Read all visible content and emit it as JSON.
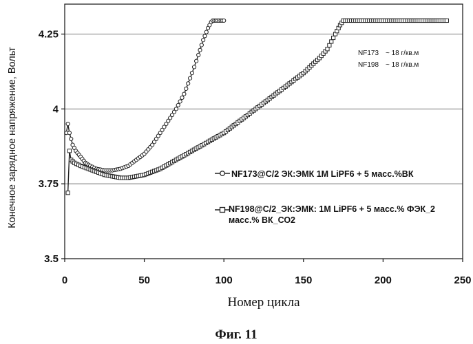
{
  "chart_data": {
    "type": "line",
    "xlabel": "Номер цикла",
    "ylabel": "Конечное зарядное напряжение, Вольт",
    "caption": "Фиг. 11",
    "xlim": [
      0,
      250
    ],
    "ylim": [
      3.5,
      4.35
    ],
    "x_ticks": [
      0,
      50,
      100,
      150,
      200,
      250
    ],
    "x_tick_labels": [
      "0",
      "50",
      "100",
      "150",
      "200",
      "250"
    ],
    "y_ticks": [
      3.5,
      3.75,
      4,
      4.25
    ],
    "y_tick_labels": [
      "3.5",
      "3.75",
      "4",
      "4.25"
    ],
    "grid": "horizontal",
    "legend_position": "right",
    "series": [
      {
        "name": "NF173@C/2 ЭК:ЭМК 1M LiPF6 + 5 масс.%ВК",
        "marker": "circle",
        "x": [
          1,
          2,
          3,
          5,
          7,
          10,
          13,
          16,
          20,
          25,
          30,
          35,
          40,
          45,
          50,
          55,
          60,
          65,
          70,
          75,
          80,
          84,
          87,
          90,
          92,
          93,
          95,
          98,
          100
        ],
        "y": [
          3.92,
          3.95,
          3.92,
          3.88,
          3.86,
          3.84,
          3.82,
          3.81,
          3.8,
          3.795,
          3.795,
          3.8,
          3.81,
          3.83,
          3.85,
          3.88,
          3.92,
          3.96,
          4.0,
          4.05,
          4.12,
          4.18,
          4.23,
          4.27,
          4.29,
          4.295,
          4.295,
          4.295,
          4.295
        ]
      },
      {
        "name": "NF198@C/2_ЭК:ЭМК: 1M LiPF6 + 5 масс.% ФЭК_2 масс.% ВК_СО2",
        "marker": "square",
        "x": [
          2,
          3,
          4,
          6,
          10,
          15,
          20,
          25,
          30,
          35,
          40,
          45,
          50,
          60,
          70,
          80,
          90,
          100,
          110,
          120,
          130,
          140,
          150,
          160,
          165,
          170,
          173,
          175,
          180,
          190,
          200,
          210,
          220,
          230,
          240
        ],
        "y": [
          3.72,
          3.86,
          3.83,
          3.82,
          3.81,
          3.8,
          3.79,
          3.78,
          3.775,
          3.77,
          3.77,
          3.775,
          3.78,
          3.8,
          3.83,
          3.86,
          3.89,
          3.92,
          3.96,
          4.0,
          4.04,
          4.08,
          4.12,
          4.17,
          4.2,
          4.25,
          4.28,
          4.295,
          4.295,
          4.295,
          4.295,
          4.295,
          4.295,
          4.295,
          4.295
        ]
      }
    ],
    "notes": [
      {
        "label": "NF173",
        "value": "~ 18 г/кв.м"
      },
      {
        "label": "NF198",
        "value": "~ 18 г/кв.м"
      }
    ]
  }
}
